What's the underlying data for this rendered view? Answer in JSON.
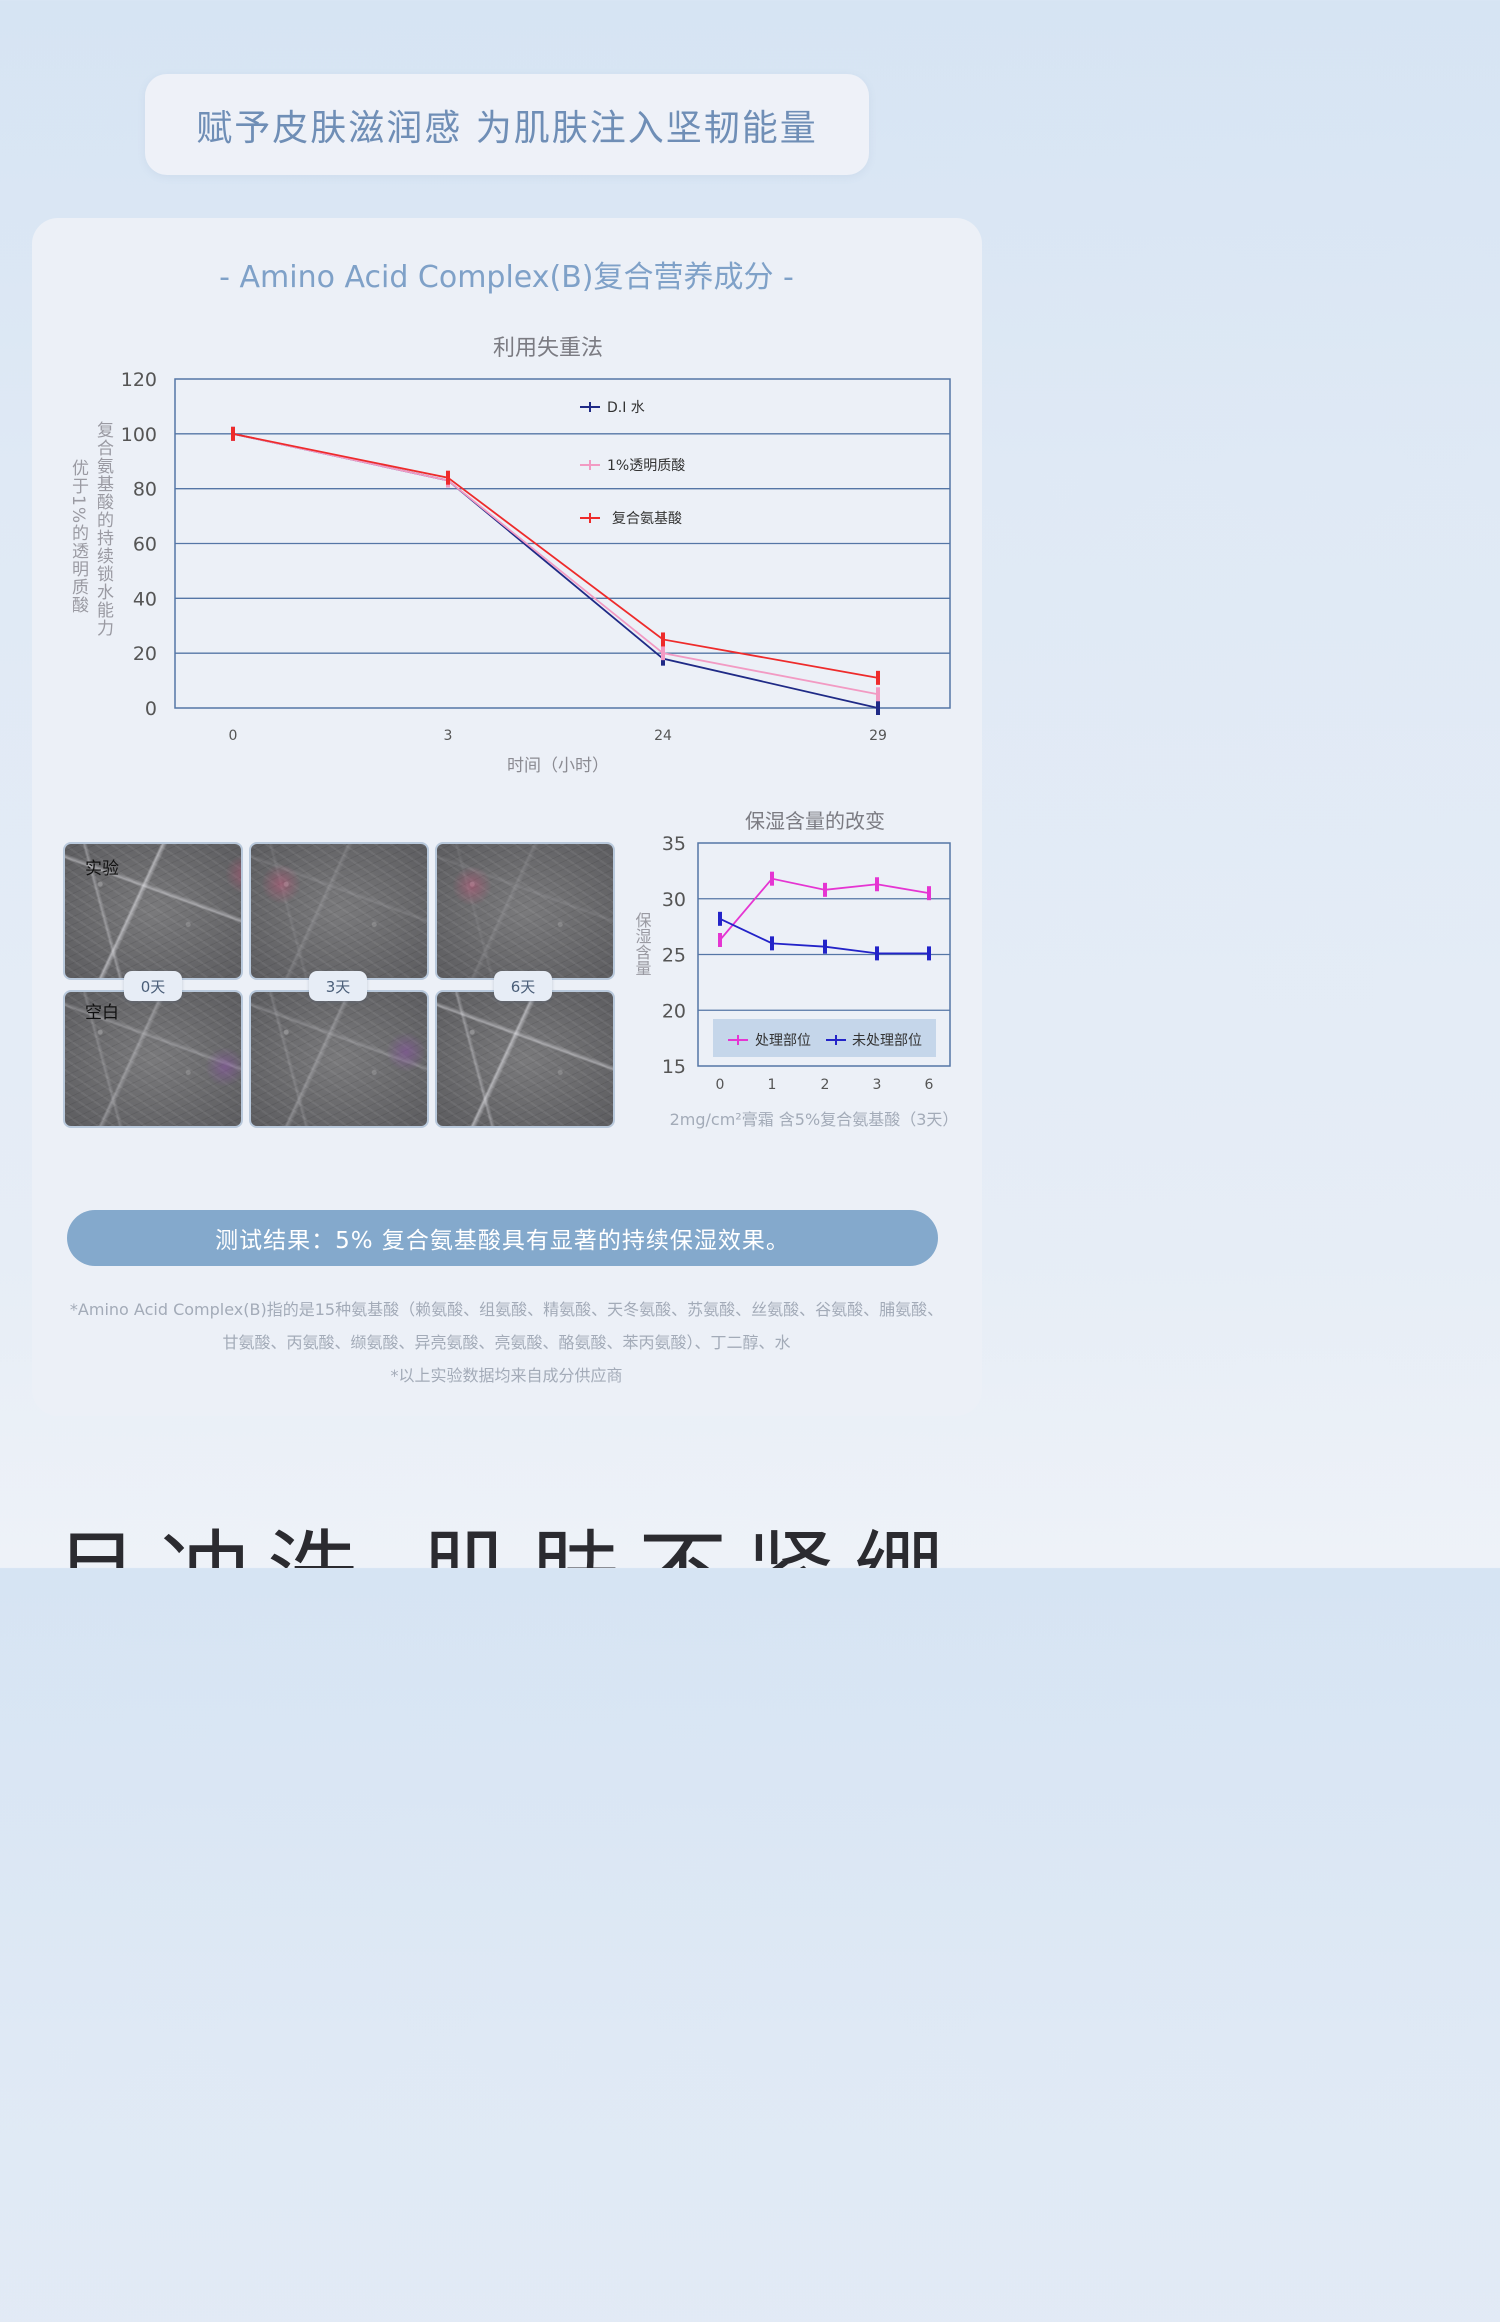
{
  "headline": "赋予皮肤滋润感 为肌肤注入坚韧能量",
  "card_title": "- Amino Acid Complex(B)复合营养成分 -",
  "chart_data": [
    {
      "type": "line",
      "title": "利用失重法",
      "xlabel": "时间（小时）",
      "ylabel_lines": [
        "复合氨基酸的持续锁水能力",
        "优于1%的透明质酸"
      ],
      "categories": [
        "0",
        "3",
        "24",
        "29"
      ],
      "ylim": [
        0,
        120
      ],
      "yticks": [
        0,
        20,
        40,
        60,
        80,
        100,
        120
      ],
      "grid": true,
      "legend_position": "top-center",
      "series": [
        {
          "name": "D.I 水",
          "color": "#1f2a86",
          "values": [
            100,
            83,
            18,
            0
          ]
        },
        {
          "name": "1%透明质酸",
          "color": "#f29ac3",
          "values": [
            100,
            83,
            20,
            5
          ]
        },
        {
          "name": "复合氨基酸",
          "color": "#ee2b2b",
          "values": [
            100,
            84,
            25,
            11
          ]
        }
      ]
    },
    {
      "type": "line",
      "title": "保湿含量的改变",
      "ylabel": "保湿含量",
      "categories": [
        "0",
        "1",
        "2",
        "3",
        "6"
      ],
      "ylim": [
        15,
        35
      ],
      "yticks": [
        15,
        20,
        25,
        30,
        35
      ],
      "grid": true,
      "legend_position": "bottom",
      "caption": "2mg/cm²膏霜 含5%复合氨基酸（3天）",
      "series": [
        {
          "name": "处理部位",
          "color": "#e535d2",
          "values": [
            26.3,
            31.8,
            30.8,
            31.3,
            30.5
          ]
        },
        {
          "name": "未处理部位",
          "color": "#2323c8",
          "values": [
            28.2,
            26.0,
            25.7,
            25.1,
            25.1
          ]
        }
      ]
    }
  ],
  "photos": {
    "row_labels": [
      "实验",
      "空白"
    ],
    "day_labels": [
      "0天",
      "3天",
      "6天"
    ]
  },
  "result": "测试结果：5% 复合氨基酸具有显著的持续保湿效果。",
  "notes": [
    "*Amino Acid Complex(B)指的是15种氨基酸（赖氨酸、组氨酸、精氨酸、天冬氨酸、苏氨酸、丝氨酸、谷氨酸、脯氨酸、",
    "甘氨酸、丙氨酸、缬氨酸、异亮氨酸、亮氨酸、酪氨酸、苯丙氨酸）、丁二醇、水",
    "*以上实验数据均来自成分供应商"
  ],
  "bottom_headline": "且冲洗 肌肤不紧绷"
}
